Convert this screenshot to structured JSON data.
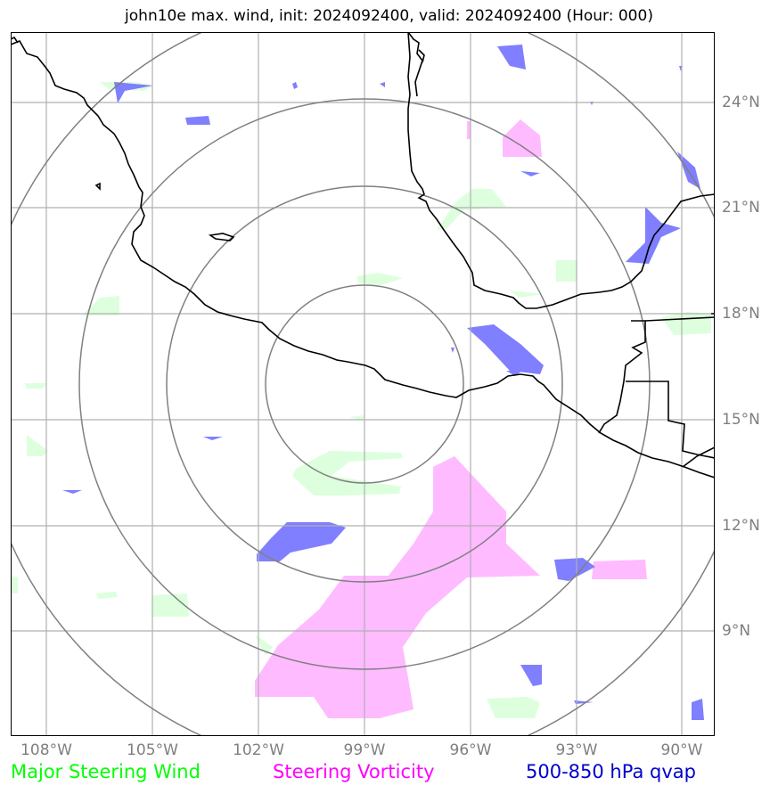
{
  "title": "john10e max. wind, init: 2024092400, valid: 2024092400 (Hour: 000)",
  "lon_ticks": [
    "108°W",
    "105°W",
    "102°W",
    "99°W",
    "96°W",
    "93°W",
    "90°W"
  ],
  "lat_ticks": [
    "24°N",
    "21°N",
    "18°N",
    "15°N",
    "12°N",
    "9°N"
  ],
  "legend": [
    {
      "label": "Major Steering Wind",
      "color": "#00ff00"
    },
    {
      "label": "Steering Vorticity",
      "color": "#ff00ff"
    },
    {
      "label": "500-850 hPa qvap",
      "color": "#0000cc"
    }
  ],
  "colors": {
    "wind_fill": "#ddffdd",
    "vorticity_fill": "#ffbbff",
    "qvap_fill": "#7f7fff",
    "grid": "#b0b0b0",
    "range_rings": "#808080",
    "coastline": "#000000"
  },
  "map": {
    "extent_lon": [
      -108.9,
      -89.1
    ],
    "extent_lat": [
      6.5,
      26.3
    ],
    "center_lon": -99.0,
    "center_lat": 16.4,
    "range_rings_deg": [
      2.8,
      5.5,
      8.2,
      11.0
    ]
  }
}
